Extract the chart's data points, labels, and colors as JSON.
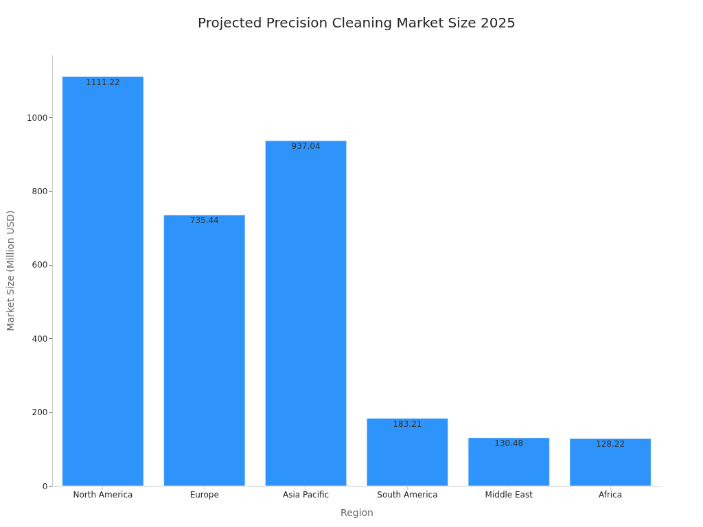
{
  "chart_data": {
    "type": "bar",
    "title": "Projected Precision Cleaning Market Size 2025",
    "xlabel": "Region",
    "ylabel": "Market Size (Million USD)",
    "categories": [
      "North America",
      "Europe",
      "Asia Pacific",
      "South America",
      "Middle East",
      "Africa"
    ],
    "values": [
      1111.22,
      735.44,
      937.04,
      183.21,
      130.48,
      128.22
    ],
    "color": "#2e93fa",
    "ylim": [
      0,
      1170
    ],
    "yticks": [
      0,
      200,
      400,
      600,
      800,
      1000
    ],
    "grid": false,
    "data_labels": true
  }
}
